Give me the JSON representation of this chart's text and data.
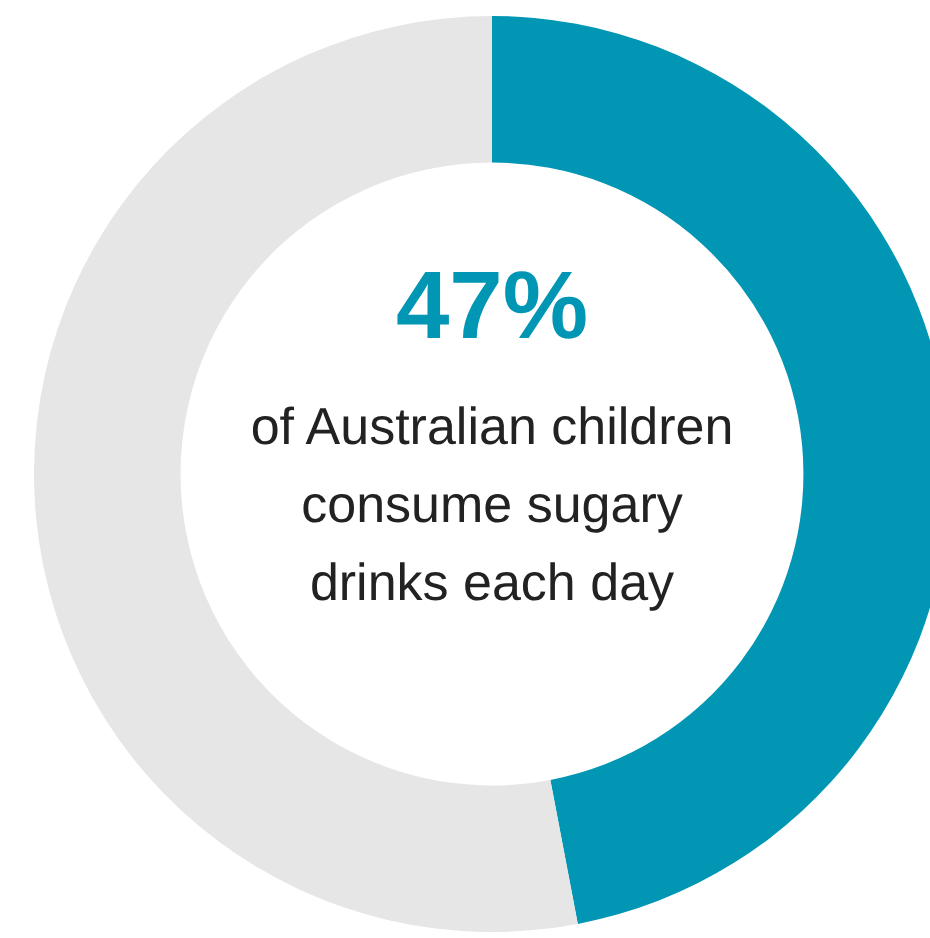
{
  "chart_data": {
    "type": "donut",
    "categories": [
      null,
      null
    ],
    "values": [
      47,
      53
    ],
    "colors": [
      "#0096b4",
      "#e6e6e6"
    ],
    "annotations": [
      "47%",
      "of Australian children consume sugary drinks each day"
    ],
    "legend": false
  }
}
